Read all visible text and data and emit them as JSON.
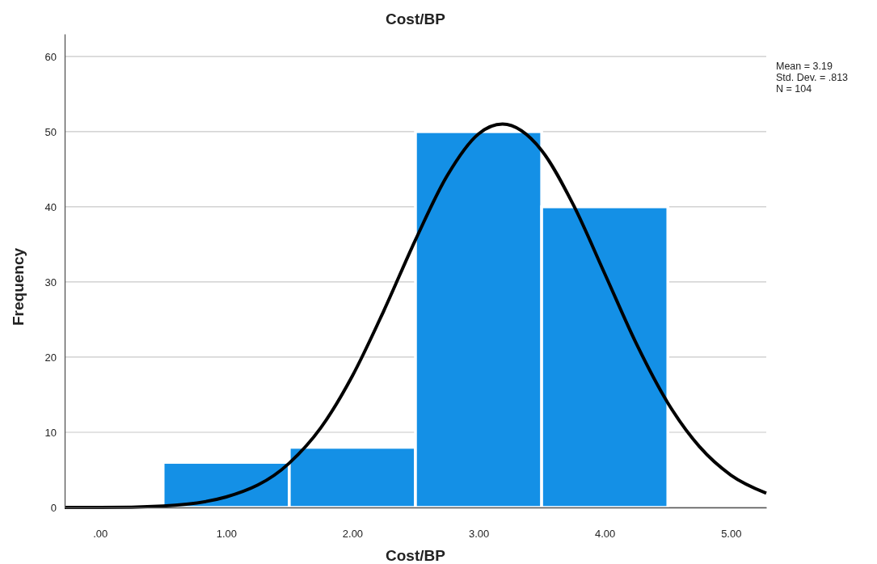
{
  "chart_data": {
    "type": "histogram",
    "title": "Cost/BP",
    "xlabel": "Cost/BP",
    "ylabel": "Frequency",
    "bins": [
      0.5,
      1.5,
      2.5,
      3.5,
      4.5
    ],
    "series": [
      {
        "color": "#1490e6",
        "values": [
          6,
          8,
          50,
          40
        ]
      },
      {
        "type": "line",
        "color": "#000000",
        "x": [
          -0.28,
          0,
          0.5,
          1,
          1.5,
          1.75,
          2,
          2.25,
          2.5,
          2.75,
          3,
          3.19,
          3.5,
          3.75,
          4,
          4.25,
          4.5,
          4.75,
          5,
          5.28
        ],
        "values": [
          0,
          0,
          0.2,
          1.4,
          5.9,
          10.6,
          17.5,
          26.2,
          35.6,
          44.1,
          49.7,
          51,
          47.5,
          40.3,
          31.1,
          21.8,
          13.9,
          8.1,
          4.3,
          1.9
        ]
      }
    ],
    "xlim": [
      -0.28,
      5.28
    ],
    "xticks": [
      {
        "value": 0,
        "label": ".00"
      },
      {
        "value": 1,
        "label": "1.00"
      },
      {
        "value": 2,
        "label": "2.00"
      },
      {
        "value": 3,
        "label": "3.00"
      },
      {
        "value": 4,
        "label": "4.00"
      },
      {
        "value": 5,
        "label": "5.00"
      }
    ],
    "ylim": [
      0,
      63
    ],
    "yticks": [
      0,
      10,
      20,
      30,
      40,
      50,
      60
    ],
    "grid": "y",
    "marker": "none",
    "line_style": "solid",
    "annotations": [
      "Mean = 3.19",
      "Std. Dev. = .813",
      "N = 104"
    ]
  }
}
